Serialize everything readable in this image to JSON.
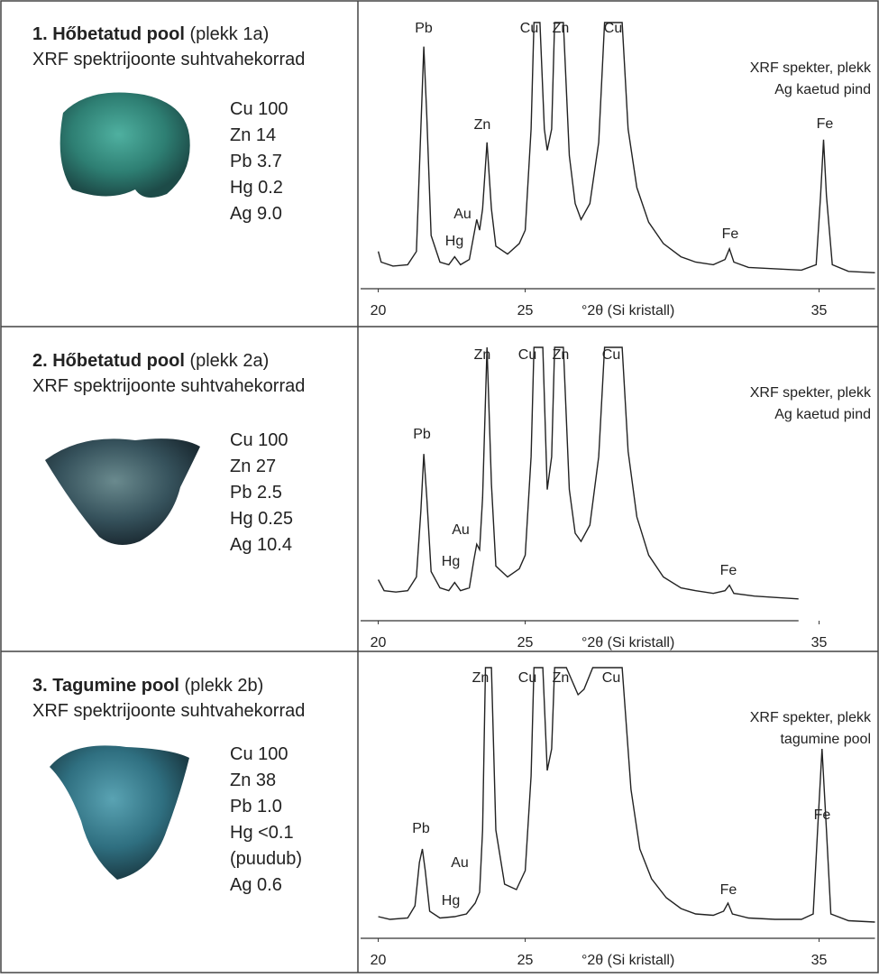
{
  "panels": [
    {
      "title_bold": "1. Hőbetatud pool",
      "title_rest": " (plekk 1a)",
      "subtitle": "XRF spektrijoonte suhtvahekorrad",
      "composition": [
        "Cu 100",
        "Zn 14",
        "Pb 3.7",
        "Hg 0.2",
        "Ag 9.0"
      ]
    },
    {
      "title_bold": "2. Hőbetatud pool",
      "title_rest": " (plekk 2a)",
      "subtitle": "XRF spektrijoonte suhtvahekorrad",
      "composition": [
        "Cu 100",
        "Zn 27",
        "Pb 2.5",
        "Hg 0.25",
        "Ag 10.4"
      ]
    },
    {
      "title_bold": "3. Tagumine pool",
      "title_rest": " (plekk 2b)",
      "subtitle": "XRF spektrijoonte suhtvahekorrad",
      "composition": [
        "Cu 100",
        "Zn 38",
        "Pb 1.0",
        "Hg  <0.1",
        "(puudub)",
        "Ag 0.6"
      ]
    }
  ],
  "chart_data": [
    {
      "type": "line",
      "annotation": [
        "XRF spekter, plekk",
        "Ag kaetud pind"
      ],
      "x_label": "°2θ (Si kristall)",
      "xlim": [
        19.4,
        36.9
      ],
      "xticks": [
        20,
        25,
        35
      ],
      "ylim": [
        0,
        100
      ],
      "color": "#222222",
      "peak_labels": [
        "Pb",
        "Cu",
        "Zn",
        "Cu",
        "Zn",
        "Au",
        "Hg",
        "Fe",
        "Fe"
      ],
      "x": [
        20.0,
        20.1,
        20.5,
        21.0,
        21.3,
        21.45,
        21.55,
        21.65,
        21.8,
        22.1,
        22.4,
        22.6,
        22.8,
        23.1,
        23.25,
        23.35,
        23.45,
        23.55,
        23.7,
        23.85,
        24.0,
        24.4,
        24.8,
        25.0,
        25.2,
        25.3,
        25.5,
        25.65,
        25.75,
        25.9,
        26.0,
        26.3,
        26.5,
        26.7,
        26.9,
        27.2,
        27.5,
        27.7,
        28.3,
        28.5,
        28.8,
        29.2,
        29.7,
        30.3,
        30.8,
        31.4,
        31.8,
        31.95,
        32.1,
        32.6,
        33.5,
        34.4,
        34.9,
        35.05,
        35.15,
        35.25,
        35.45,
        36.0,
        36.9
      ],
      "values": [
        14,
        10,
        8.5,
        9,
        14,
        60,
        91,
        65,
        20,
        10,
        9,
        12,
        9,
        11,
        20,
        26,
        22,
        30,
        55,
        30,
        16,
        13,
        17,
        22,
        60,
        100,
        100,
        60,
        52,
        60,
        100,
        100,
        50,
        32,
        26,
        32,
        55,
        100,
        100,
        60,
        38,
        25,
        17,
        12,
        10,
        9,
        11,
        15,
        10,
        8,
        7.5,
        7,
        9,
        35,
        56,
        35,
        9,
        6.5,
        6
      ]
    },
    {
      "type": "line",
      "annotation": [
        "XRF spekter, plekk",
        "Ag kaetud pind"
      ],
      "x_label": "°2θ (Si kristall)",
      "xlim": [
        19.4,
        34.3
      ],
      "xticks": [
        20,
        25,
        35
      ],
      "ylim": [
        0,
        100
      ],
      "color": "#222222",
      "peak_labels": [
        "Zn",
        "Cu",
        "Zn",
        "Cu",
        "Pb",
        "Au",
        "Hg",
        "Fe"
      ],
      "x": [
        20.0,
        20.2,
        20.6,
        21.0,
        21.3,
        21.45,
        21.55,
        21.65,
        21.8,
        22.1,
        22.4,
        22.6,
        22.8,
        23.1,
        23.25,
        23.35,
        23.45,
        23.55,
        23.7,
        23.85,
        24.0,
        24.4,
        24.8,
        25.0,
        25.2,
        25.3,
        25.6,
        25.75,
        25.9,
        26.0,
        26.3,
        26.5,
        26.7,
        26.9,
        27.2,
        27.5,
        27.7,
        28.3,
        28.5,
        28.8,
        29.2,
        29.7,
        30.3,
        30.8,
        31.4,
        31.8,
        31.95,
        32.1,
        32.8,
        33.5,
        34.3
      ],
      "values": [
        15,
        11,
        10.5,
        11,
        16,
        40,
        61,
        45,
        18,
        12,
        11,
        14,
        11,
        12,
        22,
        28,
        26,
        45,
        100,
        50,
        20,
        16,
        19,
        24,
        60,
        100,
        100,
        48,
        60,
        100,
        100,
        48,
        32,
        29,
        35,
        60,
        100,
        100,
        62,
        38,
        24,
        16,
        12,
        11,
        10,
        11,
        13,
        10,
        9,
        8.5,
        8
      ]
    },
    {
      "type": "line",
      "annotation": [
        "XRF spekter, plekk",
        "tagumine pool"
      ],
      "x_label": "°2θ (Si kristall)",
      "xlim": [
        19.4,
        36.9
      ],
      "xticks": [
        20,
        25,
        35
      ],
      "ylim": [
        0,
        100
      ],
      "color": "#222222",
      "peak_labels": [
        "Zn",
        "Cu",
        "Zn",
        "Cu",
        "Pb",
        "Au",
        "Hg",
        "Fe",
        "Fe"
      ],
      "x": [
        20.0,
        20.4,
        21.0,
        21.25,
        21.4,
        21.5,
        21.6,
        21.75,
        22.1,
        22.6,
        23.0,
        23.3,
        23.45,
        23.55,
        23.65,
        23.85,
        24.0,
        24.3,
        24.7,
        25.0,
        25.2,
        25.3,
        25.6,
        25.75,
        25.9,
        26.0,
        26.4,
        26.6,
        26.8,
        27.0,
        27.3,
        28.3,
        28.6,
        28.9,
        29.3,
        29.8,
        30.3,
        30.8,
        31.4,
        31.75,
        31.9,
        32.05,
        32.6,
        33.5,
        34.4,
        34.8,
        34.95,
        35.1,
        35.25,
        35.4,
        36.0,
        36.9
      ],
      "values": [
        8,
        7,
        7.5,
        12,
        28,
        33,
        25,
        10,
        7.5,
        8,
        9,
        13,
        17,
        40,
        100,
        100,
        40,
        20,
        18,
        25,
        60,
        100,
        100,
        62,
        70,
        100,
        100,
        95,
        90,
        92,
        100,
        100,
        55,
        33,
        22,
        15,
        11,
        9,
        8.5,
        10,
        13,
        9,
        7.5,
        7,
        7,
        9,
        40,
        70,
        40,
        9,
        6.5,
        6
      ]
    }
  ]
}
